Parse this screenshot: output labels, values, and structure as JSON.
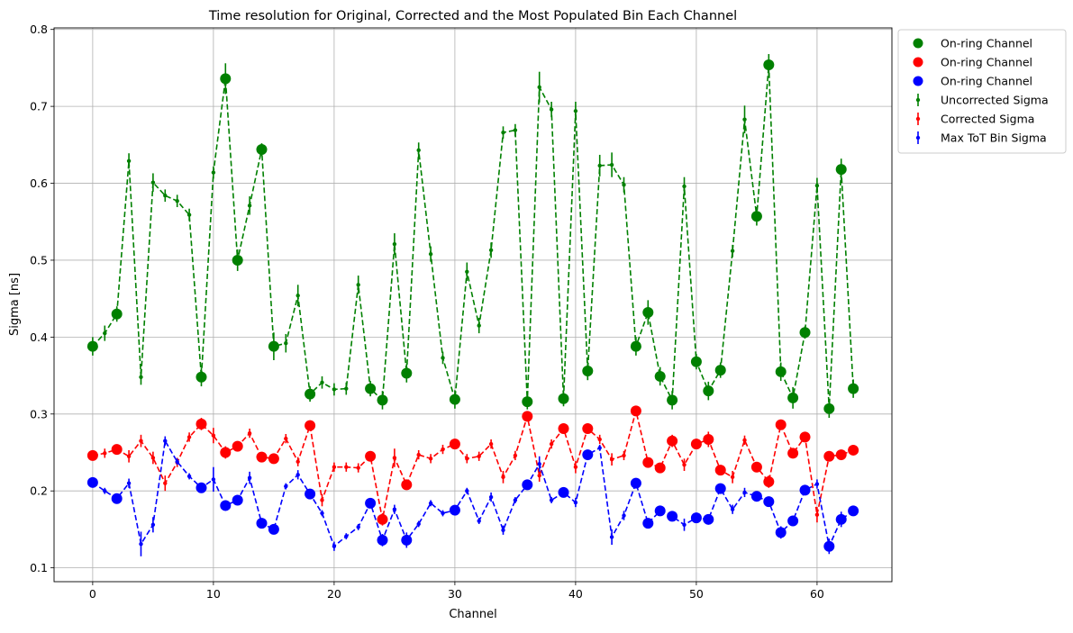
{
  "chart_data": {
    "type": "line",
    "title": "Time resolution for Original, Corrected and the Most Populated Bin Each Channel",
    "xlabel": "Channel",
    "ylabel": "Sigma [ns]",
    "xlim": [
      -3.2,
      66.2
    ],
    "ylim": [
      0.082,
      0.802
    ],
    "x_ticks": [
      0,
      10,
      20,
      30,
      40,
      50,
      60
    ],
    "y_ticks": [
      0.1,
      0.2,
      0.3,
      0.4,
      0.5,
      0.6,
      0.7,
      0.8
    ],
    "grid": true,
    "legend_position": "outside-top-right",
    "legend": [
      {
        "label": "On-ring Channel",
        "kind": "marker",
        "color": "#008000"
      },
      {
        "label": "On-ring Channel",
        "kind": "marker",
        "color": "#ff0000"
      },
      {
        "label": "On-ring Channel",
        "kind": "marker",
        "color": "#0000ff"
      },
      {
        "label": "Uncorrected Sigma",
        "kind": "errorbar",
        "color": "#008000"
      },
      {
        "label": "Corrected Sigma",
        "kind": "errorbar",
        "color": "#ff0000"
      },
      {
        "label": "Max ToT Bin Sigma",
        "kind": "errorbar",
        "color": "#0000ff"
      }
    ],
    "on_ring_channels": [
      0,
      2,
      9,
      11,
      12,
      14,
      15,
      18,
      23,
      24,
      26,
      30,
      36,
      39,
      41,
      45,
      46,
      47,
      48,
      50,
      51,
      52,
      55,
      56,
      57,
      58,
      59,
      61,
      62,
      63
    ],
    "x": [
      0,
      1,
      2,
      3,
      4,
      5,
      6,
      7,
      8,
      9,
      10,
      11,
      12,
      13,
      14,
      15,
      16,
      17,
      18,
      19,
      20,
      21,
      22,
      23,
      24,
      25,
      26,
      27,
      28,
      29,
      30,
      31,
      32,
      33,
      34,
      35,
      36,
      37,
      38,
      39,
      40,
      41,
      42,
      43,
      44,
      45,
      46,
      47,
      48,
      49,
      50,
      51,
      52,
      53,
      54,
      55,
      56,
      57,
      58,
      59,
      60,
      61,
      62,
      63
    ],
    "series": [
      {
        "name": "Uncorrected Sigma",
        "color": "#008000",
        "values": [
          0.388,
          0.405,
          0.43,
          0.629,
          0.348,
          0.601,
          0.584,
          0.577,
          0.559,
          0.348,
          0.614,
          0.736,
          0.5,
          0.571,
          0.644,
          0.388,
          0.392,
          0.454,
          0.326,
          0.341,
          0.332,
          0.333,
          0.468,
          0.333,
          0.318,
          0.521,
          0.353,
          0.643,
          0.508,
          0.373,
          0.319,
          0.485,
          0.415,
          0.513,
          0.666,
          0.669,
          0.316,
          0.725,
          0.696,
          0.32,
          0.694,
          0.356,
          0.623,
          0.624,
          0.598,
          0.388,
          0.432,
          0.349,
          0.318,
          0.596,
          0.368,
          0.33,
          0.357,
          0.512,
          0.683,
          0.557,
          0.754,
          0.355,
          0.321,
          0.406,
          0.597,
          0.307,
          0.618,
          0.333
        ],
        "errors": [
          0.012,
          0.01,
          0.01,
          0.01,
          0.01,
          0.012,
          0.008,
          0.008,
          0.008,
          0.012,
          0.008,
          0.02,
          0.014,
          0.012,
          0.008,
          0.018,
          0.012,
          0.014,
          0.01,
          0.008,
          0.008,
          0.008,
          0.012,
          0.01,
          0.012,
          0.014,
          0.012,
          0.01,
          0.01,
          0.008,
          0.012,
          0.012,
          0.01,
          0.01,
          0.008,
          0.008,
          0.01,
          0.02,
          0.01,
          0.01,
          0.012,
          0.012,
          0.014,
          0.016,
          0.01,
          0.012,
          0.016,
          0.012,
          0.012,
          0.012,
          0.01,
          0.012,
          0.01,
          0.008,
          0.018,
          0.012,
          0.014,
          0.012,
          0.014,
          0.008,
          0.01,
          0.012,
          0.014,
          0.012
        ]
      },
      {
        "name": "Corrected Sigma",
        "color": "#ff0000",
        "values": [
          0.246,
          0.249,
          0.254,
          0.245,
          0.265,
          0.243,
          0.21,
          0.237,
          0.27,
          0.287,
          0.272,
          0.25,
          0.258,
          0.275,
          0.244,
          0.242,
          0.268,
          0.238,
          0.285,
          0.188,
          0.231,
          0.231,
          0.23,
          0.245,
          0.163,
          0.243,
          0.208,
          0.247,
          0.242,
          0.254,
          0.261,
          0.242,
          0.245,
          0.261,
          0.218,
          0.246,
          0.297,
          0.22,
          0.261,
          0.281,
          0.231,
          0.281,
          0.267,
          0.241,
          0.246,
          0.304,
          0.237,
          0.23,
          0.265,
          0.234,
          0.261,
          0.267,
          0.227,
          0.218,
          0.266,
          0.231,
          0.212,
          0.286,
          0.249,
          0.27,
          0.169,
          0.245,
          0.247,
          0.253
        ],
        "errors": [
          0.006,
          0.006,
          0.006,
          0.008,
          0.008,
          0.008,
          0.01,
          0.006,
          0.006,
          0.008,
          0.01,
          0.008,
          0.006,
          0.006,
          0.006,
          0.006,
          0.006,
          0.006,
          0.006,
          0.008,
          0.006,
          0.006,
          0.006,
          0.006,
          0.008,
          0.012,
          0.006,
          0.006,
          0.006,
          0.006,
          0.006,
          0.006,
          0.006,
          0.006,
          0.008,
          0.006,
          0.006,
          0.008,
          0.006,
          0.006,
          0.008,
          0.006,
          0.006,
          0.008,
          0.006,
          0.006,
          0.006,
          0.006,
          0.008,
          0.008,
          0.006,
          0.01,
          0.006,
          0.008,
          0.006,
          0.006,
          0.008,
          0.006,
          0.006,
          0.006,
          0.01,
          0.006,
          0.006,
          0.006
        ]
      },
      {
        "name": "Max ToT Bin Sigma",
        "color": "#0000ff",
        "values": [
          0.211,
          0.2,
          0.19,
          0.21,
          0.131,
          0.156,
          0.265,
          0.238,
          0.219,
          0.204,
          0.215,
          0.181,
          0.188,
          0.217,
          0.158,
          0.15,
          0.206,
          0.221,
          0.196,
          0.171,
          0.128,
          0.141,
          0.153,
          0.184,
          0.136,
          0.176,
          0.136,
          0.157,
          0.184,
          0.171,
          0.175,
          0.2,
          0.161,
          0.192,
          0.149,
          0.188,
          0.208,
          0.235,
          0.188,
          0.198,
          0.185,
          0.247,
          0.256,
          0.14,
          0.168,
          0.21,
          0.158,
          0.174,
          0.167,
          0.156,
          0.165,
          0.163,
          0.203,
          0.176,
          0.198,
          0.193,
          0.186,
          0.146,
          0.161,
          0.201,
          0.209,
          0.128,
          0.163,
          0.174
        ],
        "errors": [
          0.006,
          0.004,
          0.006,
          0.006,
          0.016,
          0.01,
          0.006,
          0.004,
          0.004,
          0.006,
          0.016,
          0.006,
          0.006,
          0.008,
          0.006,
          0.006,
          0.004,
          0.006,
          0.006,
          0.004,
          0.006,
          0.004,
          0.004,
          0.006,
          0.008,
          0.006,
          0.01,
          0.004,
          0.004,
          0.004,
          0.004,
          0.004,
          0.004,
          0.006,
          0.006,
          0.004,
          0.006,
          0.01,
          0.004,
          0.004,
          0.006,
          0.006,
          0.004,
          0.01,
          0.006,
          0.006,
          0.006,
          0.006,
          0.006,
          0.008,
          0.006,
          0.006,
          0.006,
          0.006,
          0.006,
          0.006,
          0.006,
          0.008,
          0.006,
          0.004,
          0.006,
          0.01,
          0.01,
          0.004
        ]
      }
    ]
  }
}
